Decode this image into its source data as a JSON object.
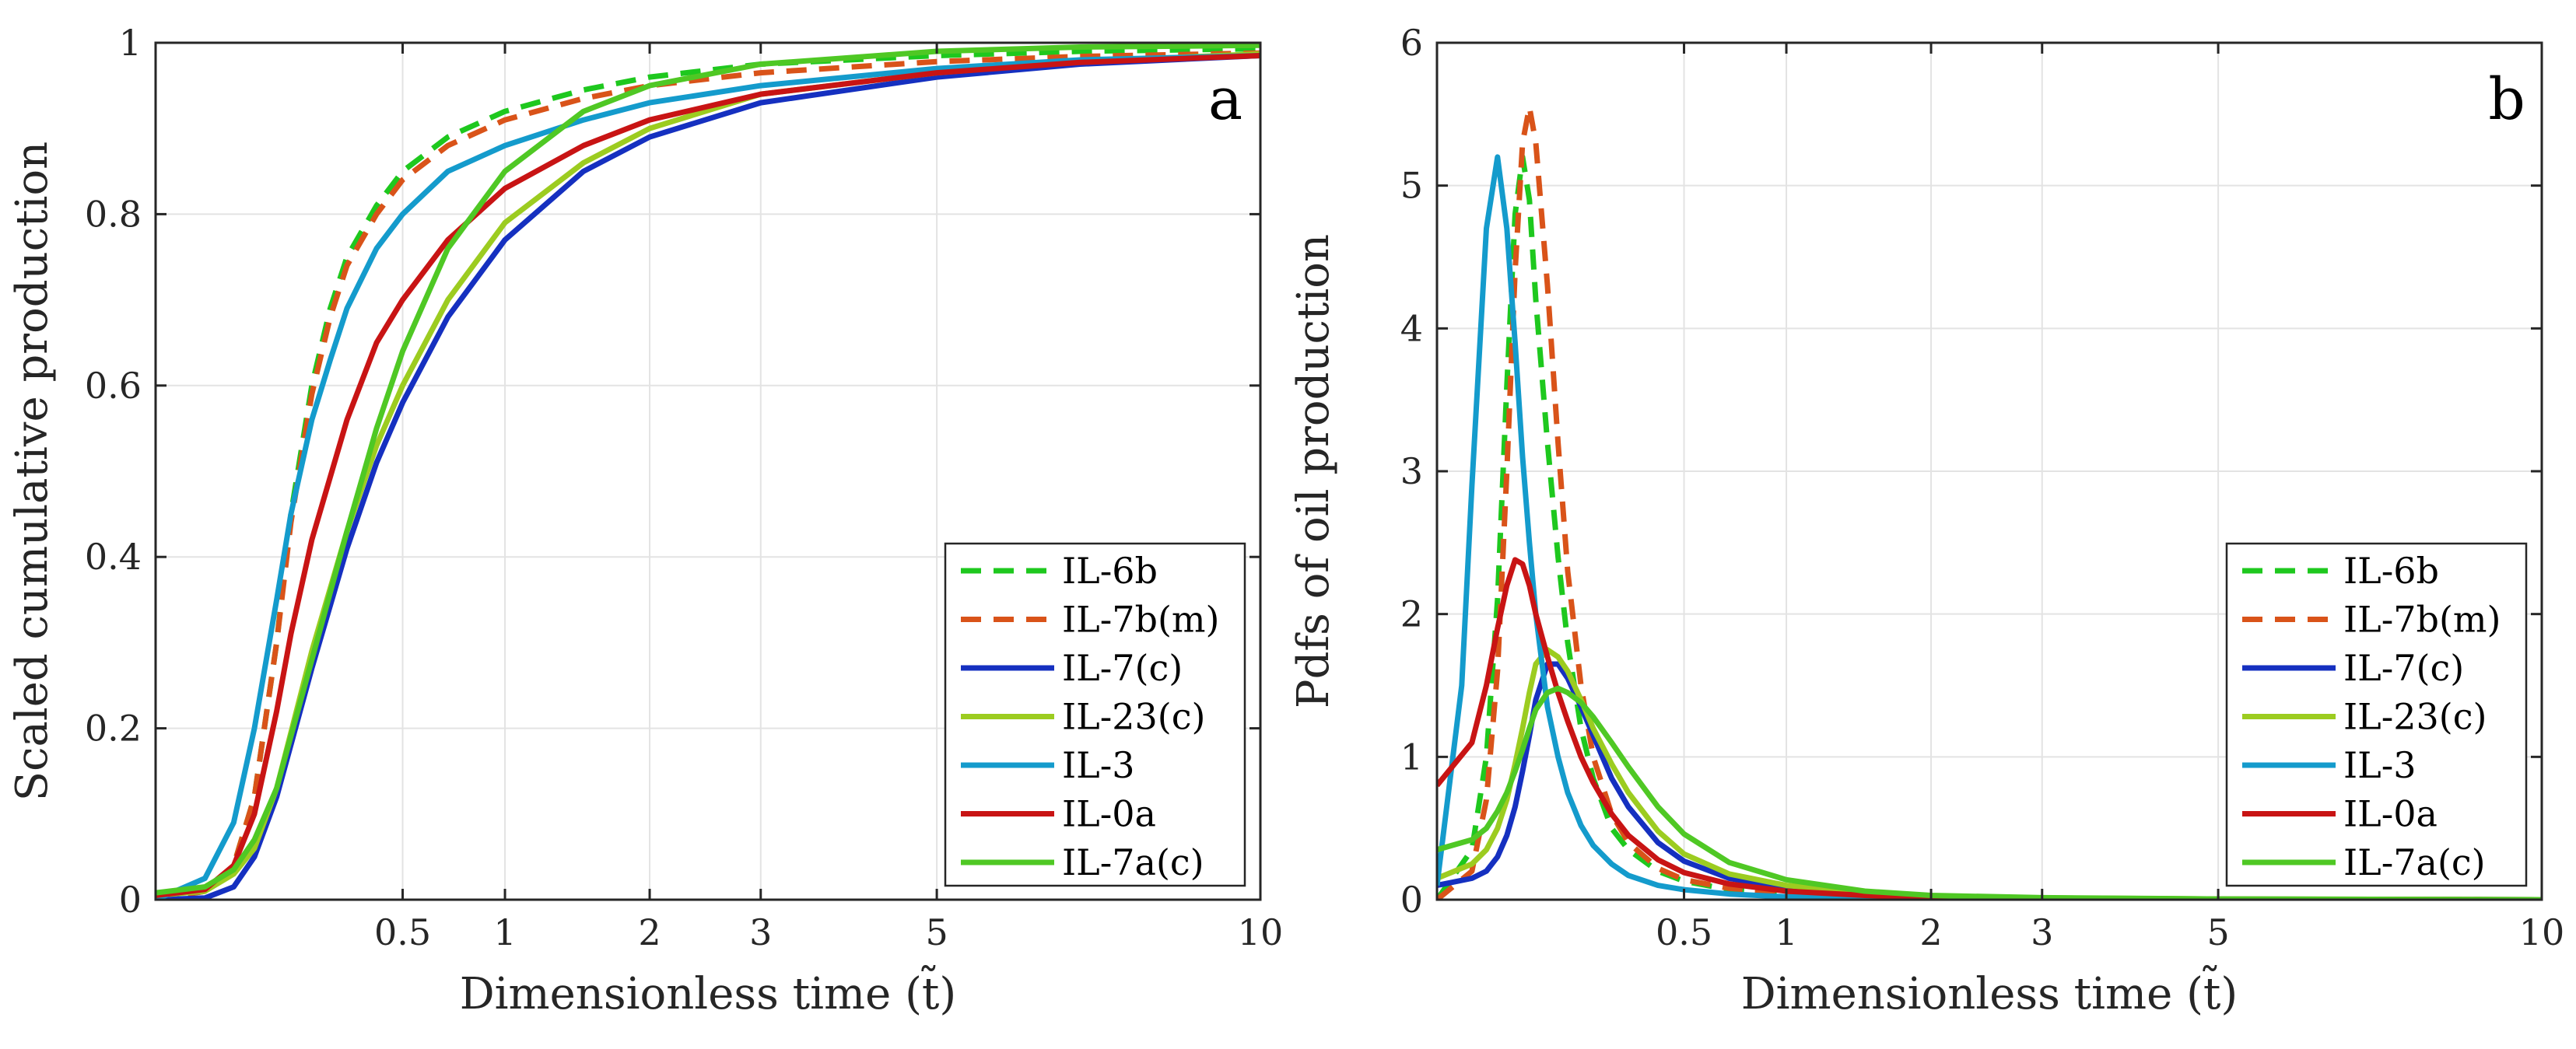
{
  "chart_data": [
    {
      "id": "a",
      "type": "line",
      "panel_label": "a",
      "xlabel": "Dimensionless time (t̃)",
      "ylabel": "Scaled cumulative production",
      "x_scale": "sqrt",
      "xlim": [
        0,
        10
      ],
      "ylim": [
        0,
        1
      ],
      "xticks": [
        0.5,
        1,
        2,
        3,
        5,
        10
      ],
      "xtick_labels": [
        "0.5",
        "1",
        "2",
        "3",
        "5",
        "10"
      ],
      "yticks": [
        0,
        0.2,
        0.4,
        0.6,
        0.8,
        1
      ],
      "ytick_labels": [
        "0",
        "0.2",
        "0.4",
        "0.6",
        "0.8",
        "1"
      ],
      "grid": true,
      "legend_position": "bottom-right",
      "series": [
        {
          "name": "IL-6b",
          "color": "#1ec81e",
          "style": "dashed",
          "x": [
            0,
            0.02,
            0.05,
            0.08,
            0.12,
            0.15,
            0.2,
            0.25,
            0.3,
            0.4,
            0.5,
            0.7,
            1,
            1.5,
            2,
            3,
            5,
            7,
            10
          ],
          "y": [
            0,
            0.01,
            0.04,
            0.12,
            0.3,
            0.45,
            0.6,
            0.69,
            0.75,
            0.81,
            0.85,
            0.89,
            0.92,
            0.945,
            0.96,
            0.975,
            0.985,
            0.99,
            0.993
          ]
        },
        {
          "name": "IL-7b(m)",
          "color": "#d95319",
          "style": "dashed",
          "x": [
            0,
            0.02,
            0.05,
            0.08,
            0.12,
            0.15,
            0.2,
            0.25,
            0.3,
            0.4,
            0.5,
            0.7,
            1,
            1.5,
            2,
            3,
            5,
            7,
            10
          ],
          "y": [
            0,
            0.01,
            0.04,
            0.12,
            0.3,
            0.44,
            0.59,
            0.68,
            0.74,
            0.8,
            0.84,
            0.88,
            0.91,
            0.935,
            0.95,
            0.965,
            0.978,
            0.984,
            0.988
          ]
        },
        {
          "name": "IL-7(c)",
          "color": "#1530c0",
          "style": "solid",
          "x": [
            0,
            0.02,
            0.05,
            0.08,
            0.12,
            0.2,
            0.3,
            0.4,
            0.5,
            0.7,
            1,
            1.5,
            2,
            3,
            5,
            7,
            10
          ],
          "y": [
            0,
            0.002,
            0.015,
            0.05,
            0.12,
            0.27,
            0.41,
            0.51,
            0.58,
            0.68,
            0.77,
            0.85,
            0.89,
            0.93,
            0.96,
            0.975,
            0.985
          ]
        },
        {
          "name": "IL-23(c)",
          "color": "#9ccc20",
          "style": "solid",
          "x": [
            0,
            0.02,
            0.05,
            0.08,
            0.12,
            0.2,
            0.3,
            0.4,
            0.5,
            0.7,
            1,
            1.5,
            2,
            3,
            5,
            7,
            10
          ],
          "y": [
            0.005,
            0.01,
            0.03,
            0.06,
            0.13,
            0.29,
            0.43,
            0.53,
            0.6,
            0.7,
            0.79,
            0.86,
            0.9,
            0.94,
            0.965,
            0.978,
            0.987
          ]
        },
        {
          "name": "IL-3",
          "color": "#149bcc",
          "style": "solid",
          "x": [
            0,
            0.02,
            0.05,
            0.08,
            0.12,
            0.15,
            0.2,
            0.25,
            0.3,
            0.4,
            0.5,
            0.7,
            1,
            1.5,
            2,
            3,
            5,
            7,
            10
          ],
          "y": [
            0,
            0.025,
            0.09,
            0.2,
            0.35,
            0.45,
            0.56,
            0.63,
            0.69,
            0.76,
            0.8,
            0.85,
            0.88,
            0.91,
            0.93,
            0.95,
            0.97,
            0.98,
            0.985
          ]
        },
        {
          "name": "IL-0a",
          "color": "#c81414",
          "style": "solid",
          "x": [
            0,
            0.02,
            0.05,
            0.08,
            0.12,
            0.15,
            0.2,
            0.3,
            0.4,
            0.5,
            0.7,
            1,
            1.5,
            2,
            3,
            5,
            7,
            10
          ],
          "y": [
            0.005,
            0.012,
            0.04,
            0.1,
            0.22,
            0.31,
            0.42,
            0.56,
            0.65,
            0.7,
            0.77,
            0.83,
            0.88,
            0.91,
            0.94,
            0.965,
            0.977,
            0.985
          ]
        },
        {
          "name": "IL-7a(c)",
          "color": "#4fc824",
          "style": "solid",
          "x": [
            0,
            0.02,
            0.05,
            0.08,
            0.12,
            0.2,
            0.3,
            0.4,
            0.5,
            0.7,
            1,
            1.5,
            2,
            3,
            5,
            7,
            10
          ],
          "y": [
            0.008,
            0.015,
            0.035,
            0.07,
            0.13,
            0.28,
            0.43,
            0.55,
            0.64,
            0.76,
            0.85,
            0.92,
            0.95,
            0.975,
            0.99,
            0.995,
            0.997
          ]
        }
      ],
      "legend": [
        "IL-6b",
        "IL-7b(m)",
        "IL-7(c)",
        "IL-23(c)",
        "IL-3",
        "IL-0a",
        "IL-7a(c)"
      ]
    },
    {
      "id": "b",
      "type": "line",
      "panel_label": "b",
      "xlabel": "Dimensionless time (t̃)",
      "ylabel": "Pdfs of oil production",
      "x_scale": "sqrt",
      "xlim": [
        0,
        10
      ],
      "ylim": [
        0,
        6
      ],
      "xticks": [
        0.5,
        1,
        2,
        3,
        5,
        10
      ],
      "xtick_labels": [
        "0.5",
        "1",
        "2",
        "3",
        "5",
        "10"
      ],
      "yticks": [
        0,
        1,
        2,
        3,
        4,
        5,
        6
      ],
      "ytick_labels": [
        "0",
        "1",
        "2",
        "3",
        "4",
        "5",
        "6"
      ],
      "grid": true,
      "legend_position": "bottom-right",
      "series": [
        {
          "name": "IL-6b",
          "color": "#1ec81e",
          "style": "dashed",
          "x": [
            0,
            0.01,
            0.02,
            0.03,
            0.04,
            0.05,
            0.06,
            0.07,
            0.08,
            0.1,
            0.12,
            0.14,
            0.17,
            0.2,
            0.25,
            0.3,
            0.4,
            0.5,
            0.7,
            1,
            1.5,
            2,
            3,
            5,
            10
          ],
          "y": [
            0,
            0.35,
            1.0,
            2.1,
            3.6,
            4.8,
            5.2,
            4.9,
            4.2,
            3.2,
            2.4,
            1.8,
            1.2,
            0.85,
            0.5,
            0.35,
            0.2,
            0.13,
            0.07,
            0.04,
            0.02,
            0.01,
            0.005,
            0.002,
            0
          ]
        },
        {
          "name": "IL-7b(m)",
          "color": "#d95319",
          "style": "dashed",
          "x": [
            0,
            0.01,
            0.02,
            0.03,
            0.04,
            0.05,
            0.06,
            0.07,
            0.08,
            0.1,
            0.12,
            0.14,
            0.17,
            0.2,
            0.25,
            0.3,
            0.4,
            0.5,
            0.7,
            1,
            1.5,
            2,
            3,
            5,
            10
          ],
          "y": [
            0,
            0.2,
            0.7,
            1.6,
            3.0,
            4.4,
            5.3,
            5.55,
            5.3,
            4.3,
            3.2,
            2.3,
            1.5,
            1.0,
            0.6,
            0.4,
            0.22,
            0.14,
            0.08,
            0.045,
            0.02,
            0.01,
            0.005,
            0.002,
            0
          ]
        },
        {
          "name": "IL-7(c)",
          "color": "#1530c0",
          "style": "solid",
          "x": [
            0,
            0.01,
            0.02,
            0.03,
            0.04,
            0.05,
            0.06,
            0.07,
            0.08,
            0.1,
            0.12,
            0.14,
            0.17,
            0.2,
            0.25,
            0.3,
            0.4,
            0.5,
            0.7,
            1,
            1.5,
            2,
            3,
            5,
            10
          ],
          "y": [
            0.1,
            0.15,
            0.2,
            0.3,
            0.45,
            0.65,
            0.9,
            1.15,
            1.4,
            1.65,
            1.65,
            1.55,
            1.35,
            1.15,
            0.85,
            0.65,
            0.4,
            0.27,
            0.15,
            0.08,
            0.04,
            0.02,
            0.01,
            0.004,
            0
          ]
        },
        {
          "name": "IL-23(c)",
          "color": "#9ccc20",
          "style": "solid",
          "x": [
            0,
            0.01,
            0.02,
            0.03,
            0.04,
            0.05,
            0.06,
            0.07,
            0.08,
            0.1,
            0.12,
            0.14,
            0.17,
            0.2,
            0.25,
            0.3,
            0.4,
            0.5,
            0.7,
            1,
            1.5,
            2,
            3,
            5,
            10
          ],
          "y": [
            0.15,
            0.25,
            0.35,
            0.5,
            0.7,
            0.95,
            1.2,
            1.45,
            1.65,
            1.75,
            1.7,
            1.6,
            1.4,
            1.2,
            0.95,
            0.75,
            0.48,
            0.32,
            0.18,
            0.1,
            0.05,
            0.025,
            0.012,
            0.005,
            0
          ]
        },
        {
          "name": "IL-3",
          "color": "#149bcc",
          "style": "solid",
          "x": [
            0,
            0.005,
            0.01,
            0.02,
            0.03,
            0.04,
            0.05,
            0.06,
            0.07,
            0.08,
            0.1,
            0.12,
            0.14,
            0.17,
            0.2,
            0.25,
            0.3,
            0.4,
            0.5,
            0.7,
            1,
            1.5,
            2,
            3,
            5,
            10
          ],
          "y": [
            0.1,
            1.5,
            2.9,
            4.7,
            5.2,
            4.7,
            3.9,
            3.1,
            2.5,
            2.0,
            1.35,
            1.0,
            0.75,
            0.52,
            0.38,
            0.25,
            0.17,
            0.1,
            0.07,
            0.04,
            0.02,
            0.01,
            0.006,
            0.003,
            0.001,
            0
          ]
        },
        {
          "name": "IL-0a",
          "color": "#c81414",
          "style": "solid",
          "x": [
            0,
            0.01,
            0.02,
            0.03,
            0.04,
            0.05,
            0.06,
            0.07,
            0.08,
            0.1,
            0.12,
            0.14,
            0.17,
            0.2,
            0.25,
            0.3,
            0.4,
            0.5,
            0.7,
            1,
            1.5,
            2,
            3,
            5,
            10
          ],
          "y": [
            0.8,
            1.1,
            1.5,
            1.9,
            2.2,
            2.38,
            2.35,
            2.2,
            2.0,
            1.7,
            1.45,
            1.25,
            1.0,
            0.82,
            0.6,
            0.45,
            0.28,
            0.19,
            0.11,
            0.06,
            0.03,
            0.015,
            0.007,
            0.003,
            0
          ]
        },
        {
          "name": "IL-7a(c)",
          "color": "#4fc824",
          "style": "solid",
          "x": [
            0,
            0.01,
            0.02,
            0.03,
            0.04,
            0.05,
            0.06,
            0.07,
            0.08,
            0.1,
            0.12,
            0.14,
            0.17,
            0.2,
            0.25,
            0.3,
            0.4,
            0.5,
            0.7,
            1,
            1.5,
            2,
            3,
            5,
            10
          ],
          "y": [
            0.35,
            0.42,
            0.5,
            0.62,
            0.75,
            0.9,
            1.05,
            1.2,
            1.33,
            1.45,
            1.48,
            1.45,
            1.38,
            1.28,
            1.1,
            0.93,
            0.65,
            0.46,
            0.26,
            0.14,
            0.06,
            0.03,
            0.014,
            0.005,
            0
          ]
        }
      ],
      "legend": [
        "IL-6b",
        "IL-7b(m)",
        "IL-7(c)",
        "IL-23(c)",
        "IL-3",
        "IL-0a",
        "IL-7a(c)"
      ]
    }
  ]
}
